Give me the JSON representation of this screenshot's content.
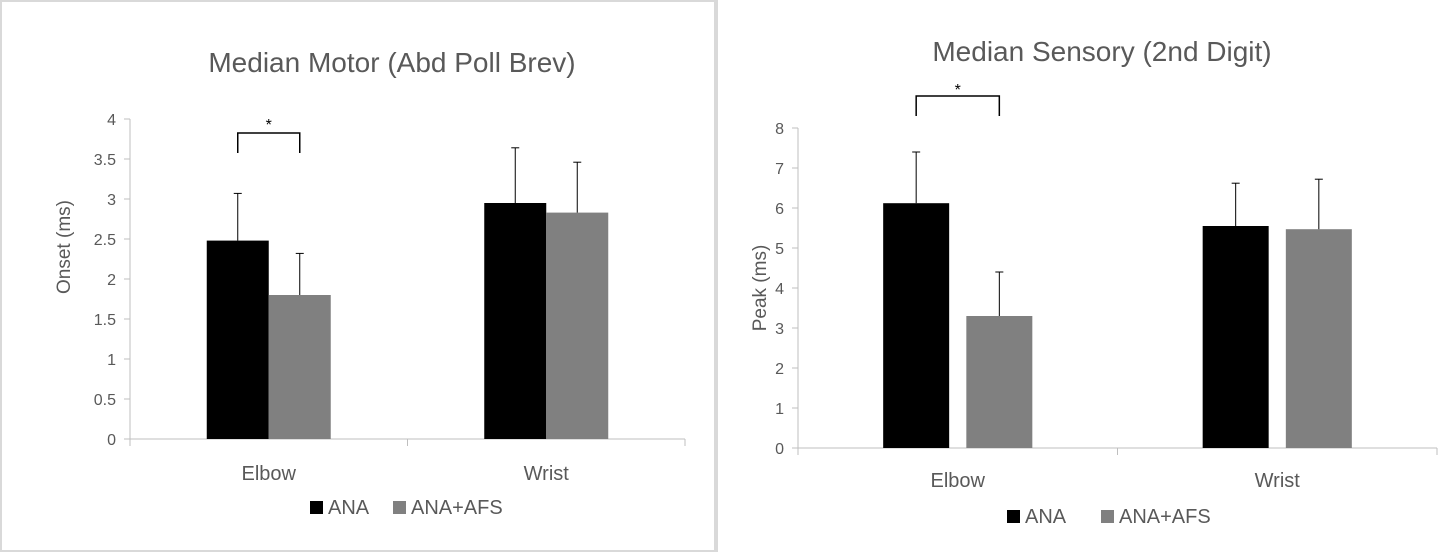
{
  "chart_data": [
    {
      "type": "bar",
      "title": "Median Motor (Abd Poll Brev)",
      "ylabel": "Onset (ms)",
      "xlabel": "",
      "categories": [
        "Elbow",
        "Wrist"
      ],
      "ylim": [
        0,
        4
      ],
      "yticks": [
        0,
        0.5,
        1,
        1.5,
        2,
        2.5,
        3,
        3.5,
        4
      ],
      "ytick_labels": [
        "0",
        "0.5",
        "1",
        "1.5",
        "2",
        "2.5",
        "3",
        "3.5",
        "4"
      ],
      "grid": false,
      "legend_position": "bottom",
      "series": [
        {
          "name": "ANA",
          "color": "#000000",
          "values": [
            2.48,
            2.95
          ],
          "error_plus": [
            0.59,
            0.69
          ]
        },
        {
          "name": "ANA+AFS",
          "color": "#808080",
          "values": [
            1.8,
            2.83
          ],
          "error_plus": [
            0.52,
            0.63
          ]
        }
      ],
      "significance": [
        {
          "category": "Elbow",
          "label": "*"
        }
      ]
    },
    {
      "type": "bar",
      "title": "Median Sensory (2nd Digit)",
      "ylabel": "Peak (ms)",
      "xlabel": "",
      "categories": [
        "Elbow",
        "Wrist"
      ],
      "ylim": [
        0,
        8
      ],
      "yticks": [
        0,
        1,
        2,
        3,
        4,
        5,
        6,
        7,
        8
      ],
      "ytick_labels": [
        "0",
        "1",
        "2",
        "3",
        "4",
        "5",
        "6",
        "7",
        "8"
      ],
      "grid": false,
      "legend_position": "bottom",
      "series": [
        {
          "name": "ANA",
          "color": "#000000",
          "values": [
            6.12,
            5.55
          ],
          "error_plus": [
            1.28,
            1.07
          ]
        },
        {
          "name": "ANA+AFS",
          "color": "#808080",
          "values": [
            3.3,
            5.47
          ],
          "error_plus": [
            1.1,
            1.25
          ]
        }
      ],
      "significance": [
        {
          "category": "Elbow",
          "label": "*"
        }
      ]
    }
  ]
}
